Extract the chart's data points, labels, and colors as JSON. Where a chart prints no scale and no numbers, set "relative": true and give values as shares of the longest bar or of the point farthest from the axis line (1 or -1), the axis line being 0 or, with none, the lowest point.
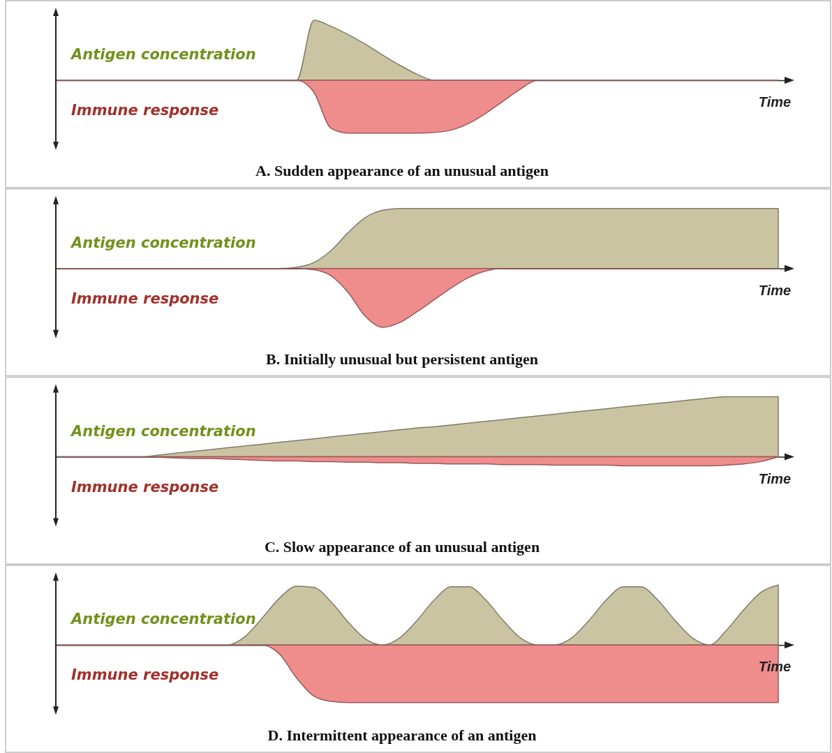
{
  "chart_data": [
    {
      "type": "area",
      "relative": true,
      "title": "A. Sudden appearance of an unusual antigen",
      "xlabel": "Time",
      "categories": [
        null,
        null,
        null,
        null,
        null,
        null,
        null,
        null,
        null,
        null,
        null,
        null,
        null,
        null,
        null,
        null,
        null,
        null,
        null,
        null,
        null,
        null,
        null,
        null,
        null,
        null,
        null,
        null,
        null,
        null,
        null,
        null,
        null,
        null,
        null,
        null,
        null,
        null,
        null,
        null,
        null,
        null,
        null
      ],
      "series": [
        {
          "name": "Antigen concentration",
          "color": "#cbc4a3",
          "values": [
            0,
            0,
            0,
            0,
            0,
            0,
            0,
            0,
            0,
            0,
            0,
            0,
            0,
            0,
            0,
            1,
            0.9,
            0.76,
            0.6,
            0.42,
            0.25,
            0.1,
            0,
            0,
            0,
            0,
            0,
            0,
            0,
            0,
            0,
            0,
            0,
            0,
            0,
            0,
            0,
            0,
            0,
            0,
            0,
            0,
            0
          ]
        },
        {
          "name": "Immune response",
          "color": "#ef8d8d",
          "values": [
            0,
            0,
            0,
            0,
            0,
            0,
            0,
            0,
            0,
            0,
            0,
            0,
            0,
            0,
            0,
            -0.2,
            -0.8,
            -0.88,
            -0.88,
            -0.88,
            -0.88,
            -0.88,
            -0.87,
            -0.83,
            -0.72,
            -0.55,
            -0.35,
            -0.15,
            0,
            0,
            0,
            0,
            0,
            0,
            0,
            0,
            0,
            0,
            0,
            0,
            0,
            0,
            0
          ]
        }
      ]
    },
    {
      "type": "area",
      "relative": true,
      "title": "B. Initially unusual but persistent antigen",
      "xlabel": "Time",
      "categories": [
        null,
        null,
        null,
        null,
        null,
        null,
        null,
        null,
        null,
        null,
        null,
        null,
        null,
        null,
        null,
        null,
        null,
        null,
        null,
        null,
        null,
        null,
        null,
        null,
        null,
        null,
        null,
        null,
        null,
        null,
        null,
        null,
        null,
        null,
        null,
        null,
        null,
        null,
        null,
        null,
        null,
        null,
        null
      ],
      "series": [
        {
          "name": "Antigen concentration",
          "color": "#cbc4a3",
          "values": [
            0,
            0,
            0,
            0,
            0,
            0,
            0,
            0,
            0,
            0,
            0,
            0,
            0,
            0,
            0.02,
            0.1,
            0.3,
            0.6,
            0.85,
            0.97,
            1,
            1,
            1,
            1,
            1,
            1,
            1,
            1,
            1,
            1,
            1,
            1,
            1,
            1,
            1,
            1,
            1,
            1,
            1,
            1,
            1,
            1,
            1
          ]
        },
        {
          "name": "Immune response",
          "color": "#ef8d8d",
          "values": [
            0,
            0,
            0,
            0,
            0,
            0,
            0,
            0,
            0,
            0,
            0,
            0,
            0,
            0,
            0,
            -0.02,
            -0.12,
            -0.4,
            -0.8,
            -0.98,
            -0.9,
            -0.72,
            -0.52,
            -0.32,
            -0.15,
            -0.04,
            0,
            0,
            0,
            0,
            0,
            0,
            0,
            0,
            0,
            0,
            0,
            0,
            0,
            0,
            0,
            0,
            0
          ]
        }
      ]
    },
    {
      "type": "area",
      "relative": true,
      "title": "C. Slow appearance of an unusual antigen",
      "xlabel": "Time",
      "categories": [
        null,
        null,
        null,
        null,
        null,
        null,
        null,
        null,
        null,
        null,
        null,
        null,
        null,
        null,
        null,
        null,
        null,
        null,
        null,
        null,
        null,
        null,
        null,
        null,
        null,
        null,
        null,
        null,
        null,
        null,
        null,
        null,
        null,
        null,
        null,
        null,
        null,
        null,
        null,
        null,
        null,
        null,
        null
      ],
      "series": [
        {
          "name": "Antigen concentration",
          "color": "#cbc4a3",
          "values": [
            0,
            0,
            0,
            0,
            0,
            0,
            0.03,
            0.06,
            0.09,
            0.12,
            0.15,
            0.18,
            0.21,
            0.24,
            0.27,
            0.3,
            0.33,
            0.36,
            0.39,
            0.42,
            0.45,
            0.48,
            0.5,
            0.53,
            0.56,
            0.59,
            0.62,
            0.65,
            0.68,
            0.71,
            0.74,
            0.77,
            0.8,
            0.83,
            0.86,
            0.89,
            0.92,
            0.95,
            0.98,
            1,
            1,
            1,
            1
          ]
        },
        {
          "name": "Immune response",
          "color": "#ef8d8d",
          "values": [
            0,
            0,
            0,
            0,
            0,
            0,
            -0.01,
            -0.02,
            -0.03,
            -0.03,
            -0.04,
            -0.05,
            -0.06,
            -0.07,
            -0.07,
            -0.08,
            -0.08,
            -0.09,
            -0.09,
            -0.1,
            -0.1,
            -0.11,
            -0.11,
            -0.12,
            -0.12,
            -0.12,
            -0.13,
            -0.13,
            -0.13,
            -0.14,
            -0.14,
            -0.14,
            -0.14,
            -0.15,
            -0.15,
            -0.15,
            -0.15,
            -0.15,
            -0.15,
            -0.14,
            -0.12,
            -0.08,
            0
          ]
        }
      ]
    },
    {
      "type": "area",
      "relative": true,
      "title": "D. Intermittent appearance of an antigen",
      "xlabel": "Time",
      "categories": [
        null,
        null,
        null,
        null,
        null,
        null,
        null,
        null,
        null,
        null,
        null,
        null,
        null,
        null,
        null,
        null,
        null,
        null,
        null,
        null,
        null,
        null,
        null,
        null,
        null,
        null,
        null,
        null,
        null,
        null,
        null,
        null,
        null,
        null,
        null,
        null,
        null,
        null,
        null,
        null,
        null,
        null,
        null
      ],
      "series": [
        {
          "name": "Antigen concentration",
          "color": "#cbc4a3",
          "values": [
            0,
            0,
            0,
            0,
            0,
            0,
            0,
            0,
            0,
            0,
            0,
            0.14,
            0.45,
            0.78,
            0.98,
            0.96,
            0.72,
            0.38,
            0.1,
            0,
            0.12,
            0.41,
            0.75,
            0.97,
            0.97,
            0.75,
            0.41,
            0.12,
            0,
            0,
            0.12,
            0.41,
            0.75,
            0.97,
            0.97,
            0.75,
            0.41,
            0.12,
            0,
            0.25,
            0.59,
            0.88,
            1
          ]
        },
        {
          "name": "Immune response",
          "color": "#ef8d8d",
          "values": [
            0,
            0,
            0,
            0,
            0,
            0,
            0,
            0,
            0,
            0,
            0,
            0,
            0,
            -0.15,
            -0.55,
            -0.85,
            -0.94,
            -0.96,
            -0.96,
            -0.96,
            -0.96,
            -0.96,
            -0.96,
            -0.96,
            -0.96,
            -0.96,
            -0.96,
            -0.96,
            -0.96,
            -0.96,
            -0.96,
            -0.96,
            -0.96,
            -0.96,
            -0.96,
            -0.96,
            -0.96,
            -0.96,
            -0.96,
            -0.96,
            -0.96,
            -0.96,
            -0.96
          ]
        }
      ]
    }
  ]
}
